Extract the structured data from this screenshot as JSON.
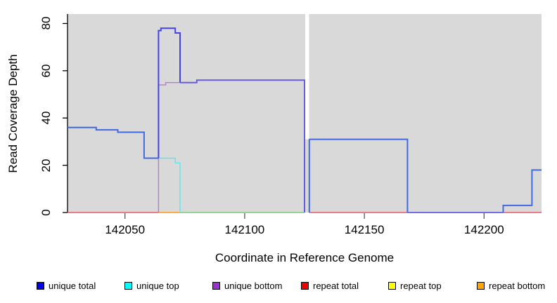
{
  "chart_data": {
    "type": "line",
    "title": "",
    "xlabel": "Coordinate in Reference Genome",
    "ylabel": "Read Coverage Depth",
    "xlim": [
      142026,
      142224
    ],
    "ylim": [
      0,
      84
    ],
    "x_ticks": [
      142050,
      142100,
      142150,
      142200
    ],
    "y_ticks": [
      0,
      20,
      40,
      60,
      80
    ],
    "plot_bg": "#d9d9d9",
    "gap_band": {
      "x1": 142125.3,
      "x2": 142126.9,
      "from_depth": 31,
      "color": "#ffffff"
    },
    "legend": [
      {
        "label": "unique total",
        "color": "#0000EE"
      },
      {
        "label": "unique top",
        "color": "#00FFFF"
      },
      {
        "label": "unique bottom",
        "color": "#9932CC"
      },
      {
        "label": "repeat total",
        "color": "#EE0000"
      },
      {
        "label": "repeat top",
        "color": "#FFFF00"
      },
      {
        "label": "repeat bottom",
        "color": "#FFA500"
      }
    ],
    "segments": [
      {
        "name": "repeat-total-line-left",
        "color": "#E6596B",
        "lw": 1.6,
        "points": [
          [
            142026,
            0
          ],
          [
            142064,
            0
          ]
        ]
      },
      {
        "name": "repeat-bottom-line",
        "color": "#FFA330",
        "lw": 1.8,
        "points": [
          [
            142064,
            0
          ],
          [
            142073,
            0
          ]
        ]
      },
      {
        "name": "overlap-zero-line-green",
        "color": "#7CCB7C",
        "lw": 1.6,
        "points": [
          [
            142073,
            0
          ],
          [
            142125,
            0
          ]
        ]
      },
      {
        "name": "repeat-total-line-mid",
        "color": "#E6596B",
        "lw": 1.6,
        "points": [
          [
            142127,
            0
          ],
          [
            142168,
            0
          ]
        ]
      },
      {
        "name": "unique-zero-line",
        "color": "#655CE2",
        "lw": 1.8,
        "points": [
          [
            142168,
            0
          ],
          [
            142208,
            0
          ]
        ]
      },
      {
        "name": "repeat-total-line-right",
        "color": "#E6596B",
        "lw": 1.6,
        "points": [
          [
            142208,
            0
          ],
          [
            142224,
            0
          ]
        ]
      },
      {
        "name": "unique-bottom-line",
        "color": "#B57CD1",
        "lw": 1.4,
        "points": [
          [
            142064,
            0
          ],
          [
            142064,
            54
          ],
          [
            142067,
            54
          ],
          [
            142067,
            55
          ],
          [
            142073,
            55
          ]
        ]
      },
      {
        "name": "unique-top-line",
        "color": "#61E6E6",
        "lw": 1.4,
        "points": [
          [
            142064,
            23
          ],
          [
            142071,
            23
          ],
          [
            142071,
            21
          ],
          [
            142073,
            21
          ],
          [
            142073,
            0
          ]
        ]
      },
      {
        "name": "unique-total-line-left",
        "color": "#4169E1",
        "lw": 2,
        "points": [
          [
            142026,
            36
          ],
          [
            142038,
            36
          ],
          [
            142038,
            35
          ],
          [
            142047,
            35
          ],
          [
            142047,
            34
          ],
          [
            142058,
            34
          ],
          [
            142058,
            23
          ],
          [
            142064,
            23
          ]
        ]
      },
      {
        "name": "unique-total-peak",
        "color": "#4343E8",
        "lw": 2,
        "points": [
          [
            142064,
            23
          ],
          [
            142064,
            77
          ],
          [
            142065,
            77
          ],
          [
            142065,
            78
          ],
          [
            142071,
            78
          ],
          [
            142071,
            76
          ],
          [
            142073,
            76
          ],
          [
            142073,
            55
          ]
        ]
      },
      {
        "name": "unique-total-merged",
        "color": "#655CE2",
        "lw": 2,
        "points": [
          [
            142073,
            55
          ],
          [
            142080,
            55
          ],
          [
            142080,
            56
          ],
          [
            142125,
            56
          ],
          [
            142125,
            0
          ]
        ]
      },
      {
        "name": "unique-total-line-mid",
        "color": "#4169E1",
        "lw": 2,
        "points": [
          [
            142127,
            0
          ],
          [
            142127,
            31
          ],
          [
            142168,
            31
          ],
          [
            142168,
            0
          ]
        ]
      },
      {
        "name": "unique-total-line-right",
        "color": "#4169E1",
        "lw": 2,
        "points": [
          [
            142208,
            0
          ],
          [
            142208,
            3
          ],
          [
            142220,
            3
          ],
          [
            142220,
            18
          ],
          [
            142224,
            18
          ]
        ]
      }
    ]
  }
}
